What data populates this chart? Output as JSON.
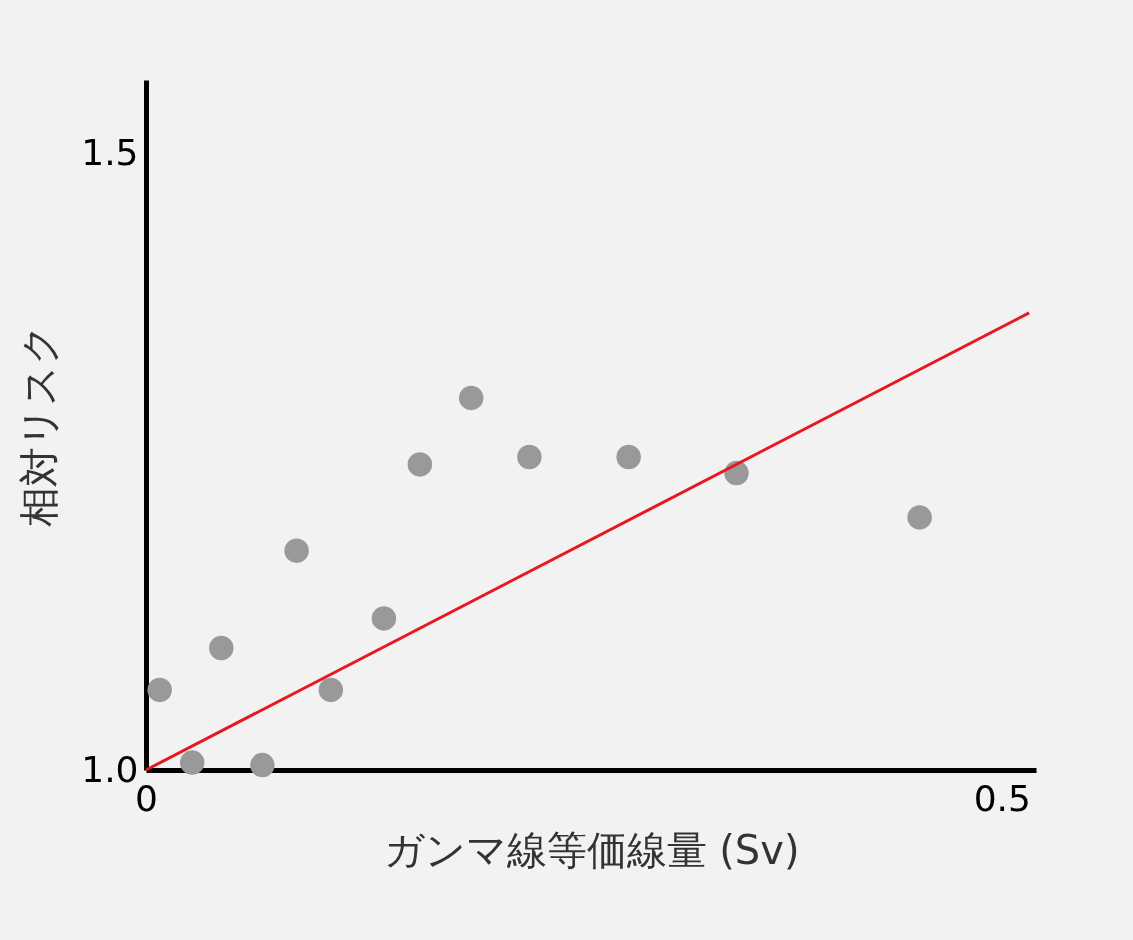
{
  "chart_data": {
    "type": "scatter",
    "xlabel": "ガンマ線等価線量 (Sv)",
    "ylabel": "相対リスク",
    "xlim": [
      0,
      0.52
    ],
    "ylim": [
      1.0,
      1.56
    ],
    "xticks": [
      0,
      0.5
    ],
    "yticks": [
      {
        "value": 1,
        "label": "1.0"
      },
      1.5
    ],
    "grid": false,
    "series": [
      {
        "marker": "circle",
        "color": "#999999",
        "x": [
          0.008,
          0.027,
          0.044,
          0.068,
          0.088,
          0.108,
          0.139,
          0.16,
          0.19,
          0.224,
          0.282,
          0.345,
          0.452
        ],
        "values": [
          1.065,
          1.006,
          1.099,
          1.004,
          1.178,
          1.065,
          1.123,
          1.248,
          1.302,
          1.254,
          1.254,
          1.241,
          1.205
        ]
      },
      {
        "type": "line",
        "color": "#e8181f",
        "x": [
          0,
          0.516
        ],
        "values": [
          1.0,
          1.371
        ]
      }
    ]
  }
}
